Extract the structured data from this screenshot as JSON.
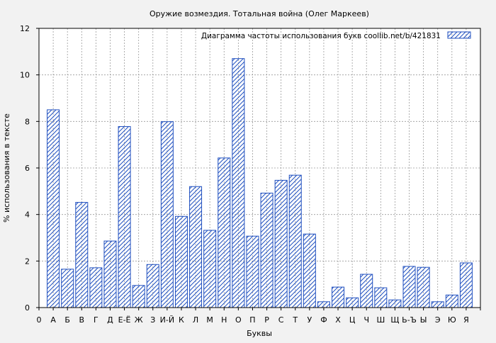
{
  "chart_data": {
    "type": "bar",
    "title": "Оружие возмездия. Тотальная война (Олег Маркеев)",
    "xlabel": "Буквы",
    "ylabel": "% использования в тексте",
    "ylim": [
      0,
      12
    ],
    "yticks": [
      0,
      2,
      4,
      6,
      8,
      10,
      12
    ],
    "grid": true,
    "legend_position": "top-right",
    "bar_color": "#1f4fbf",
    "x_tick_labels": [
      "0",
      "А",
      "Б",
      "В",
      "Г",
      "Д",
      "Е-Ё",
      "Ж",
      "З",
      "И-Й",
      "К",
      "Л",
      "М",
      "Н",
      "О",
      "П",
      "Р",
      "С",
      "Т",
      "У",
      "Ф",
      "Х",
      "Ц",
      "Ч",
      "Ш",
      "Щ",
      "Ь-Ъ",
      "Ы",
      "Э",
      "Ю",
      "Я"
    ],
    "categories": [
      "А",
      "Б",
      "В",
      "Г",
      "Д",
      "Е-Ё",
      "Ж",
      "З",
      "И-Й",
      "К",
      "Л",
      "М",
      "Н",
      "О",
      "П",
      "Р",
      "С",
      "Т",
      "У",
      "Ф",
      "Х",
      "Ц",
      "Ч",
      "Ш",
      "Щ",
      "Ь-Ъ",
      "Ы",
      "Э",
      "Ю",
      "Я"
    ],
    "series": [
      {
        "name": "Диаграмма частоты использования букв  coollib.net/b/421831",
        "values": [
          8.5,
          1.65,
          4.52,
          1.71,
          2.86,
          7.78,
          0.95,
          1.85,
          7.99,
          3.92,
          5.2,
          3.32,
          6.43,
          10.7,
          3.07,
          4.92,
          5.47,
          5.69,
          3.16,
          0.25,
          0.88,
          0.42,
          1.43,
          0.85,
          0.33,
          1.77,
          1.73,
          0.25,
          0.54,
          1.92
        ]
      }
    ]
  }
}
